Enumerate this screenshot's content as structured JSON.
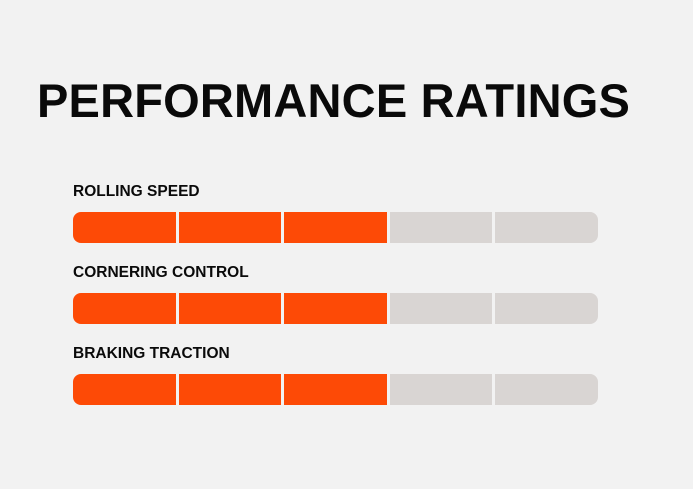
{
  "title": "PERFORMANCE RATINGS",
  "colors": {
    "background": "#f2f2f2",
    "filled_segment": "#fd4a06",
    "empty_segment": "#d9d5d3",
    "text": "#0a0a0a"
  },
  "ratings": [
    {
      "label": "ROLLING SPEED",
      "value": 3,
      "max": 5
    },
    {
      "label": "CORNERING CONTROL",
      "value": 3,
      "max": 5
    },
    {
      "label": "BRAKING TRACTION",
      "value": 3,
      "max": 5
    }
  ]
}
